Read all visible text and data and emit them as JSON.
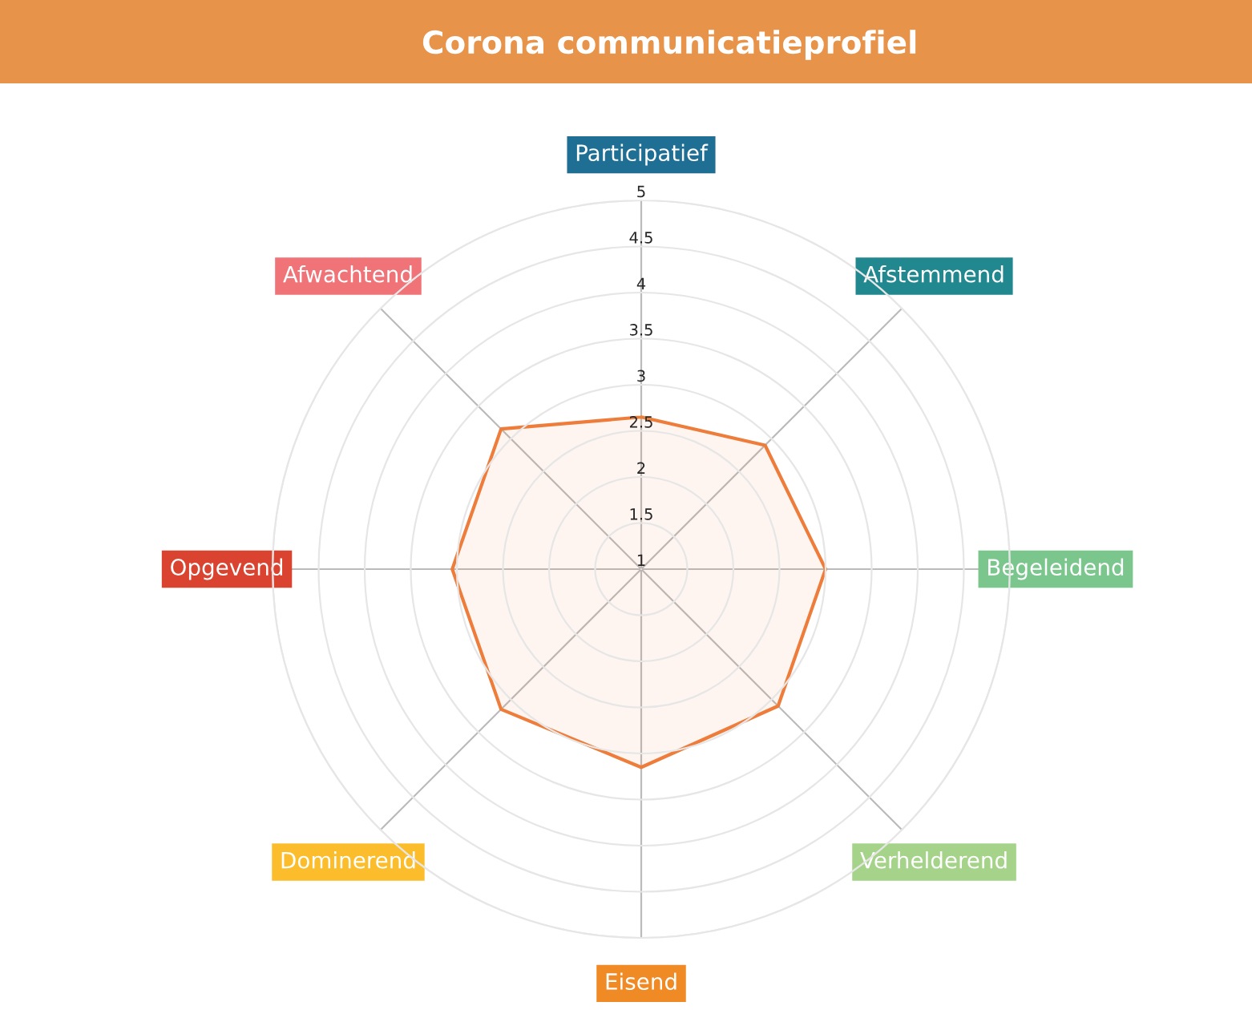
{
  "chart_data": {
    "type": "radar",
    "title": "Corona communicatieprofiel",
    "categories": [
      "Participatief",
      "Afstemmend",
      "Begeleidend",
      "Verhelderend",
      "Eisend",
      "Dominerend",
      "Opgevend",
      "Afwachtend"
    ],
    "colors": [
      "#1f6e93",
      "#22888f",
      "#7ac68d",
      "#a5d38a",
      "#f08a24",
      "#fbbd2b",
      "#d9432f",
      "#f07378"
    ],
    "series": [
      {
        "color": "#ee7d3b",
        "values": [
          2.65,
          2.9,
          3.0,
          3.1,
          3.15,
          3.15,
          3.05,
          3.15
        ]
      }
    ],
    "ylim": [
      1,
      5
    ],
    "yticks": [
      1,
      1.5,
      2,
      2.5,
      3,
      3.5,
      4,
      4.5,
      5
    ],
    "grid": true,
    "marker": "none"
  }
}
